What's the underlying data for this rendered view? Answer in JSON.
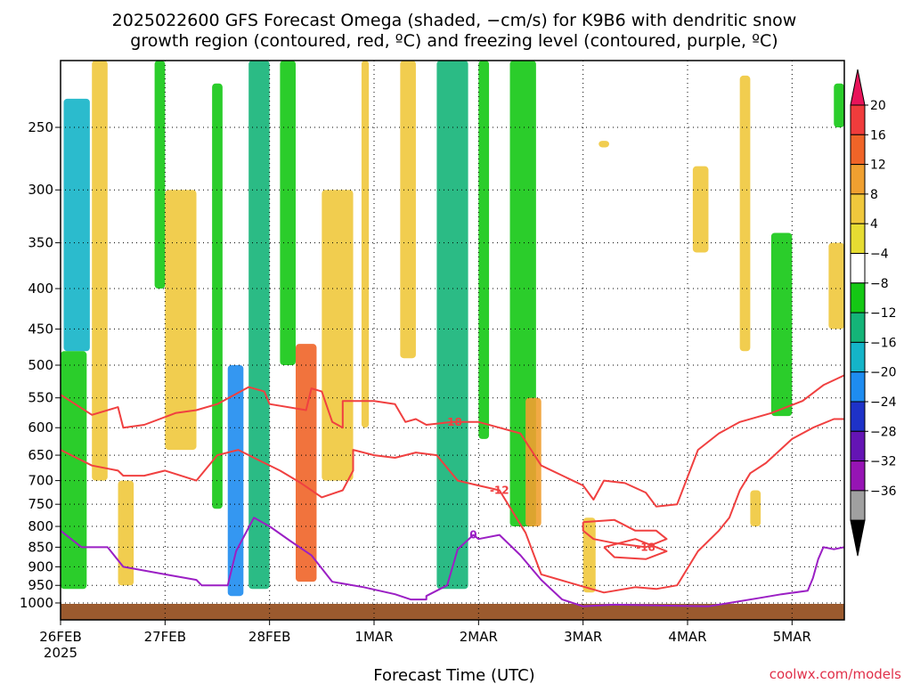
{
  "chart_data": {
    "type": "heatmap",
    "title": {
      "line1": "2025022600 GFS Forecast Omega (shaded, −cm/s) for K9B6 with dendritic snow",
      "line2": "growth region (contoured, red, ºC) and freezing level (contoured, purple, ºC)"
    },
    "xlabel": "Forecast Time (UTC)",
    "ylabel": "",
    "credit": "coolwx.com/models",
    "x_ticks": [
      {
        "label": "26FEB",
        "sub": "2025",
        "day": 0
      },
      {
        "label": "27FEB",
        "day": 1
      },
      {
        "label": "28FEB",
        "day": 2
      },
      {
        "label": "1MAR",
        "day": 3
      },
      {
        "label": "2MAR",
        "day": 4
      },
      {
        "label": "3MAR",
        "day": 5
      },
      {
        "label": "4MAR",
        "day": 6
      },
      {
        "label": "5MAR",
        "day": 7
      }
    ],
    "xlim_days": [
      0,
      7.5
    ],
    "y_ticks": [
      250,
      300,
      350,
      400,
      450,
      500,
      550,
      600,
      650,
      700,
      750,
      800,
      850,
      900,
      950,
      1000
    ],
    "ylim_hpa": [
      200,
      1025
    ],
    "grid": true,
    "colorbar": {
      "labels": [
        "20",
        "16",
        "12",
        "8",
        "4",
        "−4",
        "−8",
        "−12",
        "−16",
        "−20",
        "−24",
        "−28",
        "−32",
        "−36"
      ],
      "colors": [
        "#e8145a",
        "#f03c3c",
        "#f06428",
        "#f0a030",
        "#f0c83c",
        "#e6dc32",
        "#ffffff",
        "#14c814",
        "#14b478",
        "#14b4c8",
        "#1e8cf0",
        "#1e32c8",
        "#6414b4",
        "#9614b4",
        "#a0a0a0",
        "#000000"
      ]
    },
    "omega_regions": [
      {
        "day": [
          0.03,
          0.28
        ],
        "p": [
          230,
          480
        ],
        "value": -12
      },
      {
        "day": [
          0.0,
          0.25
        ],
        "p": [
          480,
          960
        ],
        "value": -6
      },
      {
        "day": [
          0.3,
          0.45
        ],
        "p": [
          200,
          700
        ],
        "value": 6
      },
      {
        "day": [
          0.55,
          0.7
        ],
        "p": [
          700,
          950
        ],
        "value": 5
      },
      {
        "day": [
          0.9,
          1.0
        ],
        "p": [
          200,
          400
        ],
        "value": -6
      },
      {
        "day": [
          1.0,
          1.3
        ],
        "p": [
          300,
          640
        ],
        "value": 7
      },
      {
        "day": [
          1.45,
          1.55
        ],
        "p": [
          220,
          760
        ],
        "value": -6
      },
      {
        "day": [
          1.6,
          1.75
        ],
        "p": [
          500,
          980
        ],
        "value": -18
      },
      {
        "day": [
          1.8,
          2.0
        ],
        "p": [
          200,
          960
        ],
        "value": -10
      },
      {
        "day": [
          2.1,
          2.25
        ],
        "p": [
          200,
          500
        ],
        "value": -6
      },
      {
        "day": [
          2.25,
          2.45
        ],
        "p": [
          470,
          940
        ],
        "value": 12
      },
      {
        "day": [
          2.5,
          2.8
        ],
        "p": [
          300,
          700
        ],
        "value": 6
      },
      {
        "day": [
          2.88,
          2.95
        ],
        "p": [
          200,
          600
        ],
        "value": 5
      },
      {
        "day": [
          3.25,
          3.4
        ],
        "p": [
          200,
          490
        ],
        "value": 5
      },
      {
        "day": [
          3.6,
          3.9
        ],
        "p": [
          200,
          960
        ],
        "value": -8
      },
      {
        "day": [
          4.0,
          4.1
        ],
        "p": [
          200,
          620
        ],
        "value": -6
      },
      {
        "day": [
          4.3,
          4.55
        ],
        "p": [
          200,
          800
        ],
        "value": -6
      },
      {
        "day": [
          4.45,
          4.6
        ],
        "p": [
          550,
          800
        ],
        "value": 8
      },
      {
        "day": [
          5.0,
          5.12
        ],
        "p": [
          780,
          970
        ],
        "value": 6
      },
      {
        "day": [
          5.15,
          5.25
        ],
        "p": [
          260,
          265
        ],
        "value": 5
      },
      {
        "day": [
          6.05,
          6.2
        ],
        "p": [
          280,
          360
        ],
        "value": 5
      },
      {
        "day": [
          6.5,
          6.6
        ],
        "p": [
          215,
          480
        ],
        "value": 5
      },
      {
        "day": [
          6.6,
          6.7
        ],
        "p": [
          720,
          800
        ],
        "value": 6
      },
      {
        "day": [
          6.8,
          7.0
        ],
        "p": [
          340,
          580
        ],
        "value": -6
      },
      {
        "day": [
          7.35,
          7.5
        ],
        "p": [
          350,
          450
        ],
        "value": 5
      },
      {
        "day": [
          7.4,
          7.5
        ],
        "p": [
          220,
          250
        ],
        "value": -6
      }
    ],
    "contours": [
      {
        "level": -18,
        "color": "#f04040",
        "label": "-18",
        "points": [
          [
            0,
            545
          ],
          [
            0.3,
            578
          ],
          [
            0.55,
            565
          ],
          [
            0.6,
            600
          ],
          [
            0.8,
            595
          ],
          [
            1.1,
            575
          ],
          [
            1.3,
            570
          ],
          [
            1.5,
            560
          ],
          [
            1.8,
            533
          ],
          [
            1.95,
            540
          ],
          [
            2.0,
            560
          ],
          [
            2.35,
            570
          ],
          [
            2.4,
            535
          ],
          [
            2.5,
            540
          ],
          [
            2.6,
            590
          ],
          [
            2.7,
            600
          ],
          [
            2.7,
            555
          ],
          [
            3.0,
            555
          ],
          [
            3.2,
            560
          ],
          [
            3.3,
            590
          ],
          [
            3.4,
            585
          ],
          [
            3.5,
            595
          ],
          [
            3.75,
            590
          ],
          [
            4.0,
            590
          ],
          [
            4.2,
            600
          ],
          [
            4.4,
            610
          ],
          [
            4.6,
            670
          ],
          [
            5.0,
            710
          ],
          [
            5.1,
            740
          ],
          [
            5.2,
            700
          ],
          [
            5.4,
            705
          ],
          [
            5.6,
            725
          ],
          [
            5.7,
            755
          ],
          [
            5.9,
            750
          ],
          [
            6.1,
            640
          ],
          [
            6.3,
            610
          ],
          [
            6.5,
            590
          ],
          [
            6.8,
            575
          ],
          [
            7.1,
            555
          ],
          [
            7.3,
            530
          ],
          [
            7.5,
            515
          ]
        ]
      },
      {
        "level": -18,
        "color": "#f04040",
        "label": "-18",
        "points": [
          [
            5.0,
            790
          ],
          [
            5.3,
            785
          ],
          [
            5.5,
            810
          ],
          [
            5.7,
            810
          ],
          [
            5.8,
            830
          ],
          [
            5.6,
            850
          ],
          [
            5.3,
            840
          ],
          [
            5.1,
            830
          ],
          [
            5.0,
            810
          ],
          [
            5.0,
            790
          ]
        ]
      },
      {
        "level": -12,
        "color": "#f04040",
        "label": "-12",
        "points": [
          [
            0,
            640
          ],
          [
            0.3,
            670
          ],
          [
            0.55,
            680
          ],
          [
            0.6,
            690
          ],
          [
            0.8,
            690
          ],
          [
            1.0,
            680
          ],
          [
            1.3,
            700
          ],
          [
            1.5,
            650
          ],
          [
            1.7,
            640
          ],
          [
            1.9,
            660
          ],
          [
            2.1,
            680
          ],
          [
            2.3,
            705
          ],
          [
            2.5,
            735
          ],
          [
            2.7,
            720
          ],
          [
            2.8,
            680
          ],
          [
            2.8,
            640
          ],
          [
            3.0,
            650
          ],
          [
            3.2,
            655
          ],
          [
            3.4,
            645
          ],
          [
            3.6,
            650
          ],
          [
            3.8,
            700
          ],
          [
            4.0,
            710
          ],
          [
            4.2,
            720
          ],
          [
            4.45,
            815
          ],
          [
            4.6,
            920
          ],
          [
            4.9,
            945
          ],
          [
            5.2,
            970
          ],
          [
            5.5,
            955
          ],
          [
            5.7,
            960
          ],
          [
            5.9,
            950
          ],
          [
            6.1,
            860
          ],
          [
            6.3,
            810
          ],
          [
            6.4,
            780
          ],
          [
            6.5,
            720
          ],
          [
            6.6,
            685
          ],
          [
            6.75,
            665
          ],
          [
            7.0,
            620
          ],
          [
            7.2,
            600
          ],
          [
            7.4,
            585
          ],
          [
            7.5,
            585
          ]
        ]
      },
      {
        "level": -12,
        "color": "#f04040",
        "label": "",
        "points": [
          [
            5.2,
            850
          ],
          [
            5.5,
            830
          ],
          [
            5.8,
            860
          ],
          [
            5.6,
            880
          ],
          [
            5.3,
            875
          ],
          [
            5.2,
            850
          ]
        ]
      },
      {
        "level": 0,
        "color": "#9b1fc4",
        "label": "0",
        "points": [
          [
            0,
            810
          ],
          [
            0.2,
            850
          ],
          [
            0.45,
            850
          ],
          [
            0.6,
            900
          ],
          [
            1.0,
            920
          ],
          [
            1.3,
            935
          ],
          [
            1.35,
            950
          ],
          [
            1.6,
            950
          ],
          [
            1.68,
            860
          ],
          [
            1.85,
            780
          ],
          [
            2.0,
            800
          ],
          [
            2.2,
            835
          ],
          [
            2.4,
            870
          ],
          [
            2.6,
            940
          ],
          [
            2.9,
            955
          ],
          [
            3.2,
            975
          ],
          [
            3.35,
            990
          ],
          [
            3.5,
            990
          ],
          [
            3.5,
            980
          ],
          [
            3.7,
            950
          ],
          [
            3.8,
            855
          ],
          [
            3.95,
            820
          ],
          [
            4.0,
            830
          ],
          [
            4.2,
            820
          ],
          [
            4.4,
            870
          ],
          [
            4.6,
            935
          ],
          [
            4.8,
            990
          ],
          [
            5.0,
            1010
          ],
          [
            5.3,
            1005
          ],
          [
            6.2,
            1010
          ],
          [
            6.4,
            1000
          ],
          [
            6.7,
            985
          ],
          [
            6.9,
            975
          ],
          [
            7.15,
            965
          ],
          [
            7.2,
            930
          ],
          [
            7.25,
            880
          ],
          [
            7.3,
            850
          ],
          [
            7.4,
            855
          ],
          [
            7.5,
            850
          ]
        ]
      }
    ],
    "terrain_color": "#9b5a2e"
  }
}
